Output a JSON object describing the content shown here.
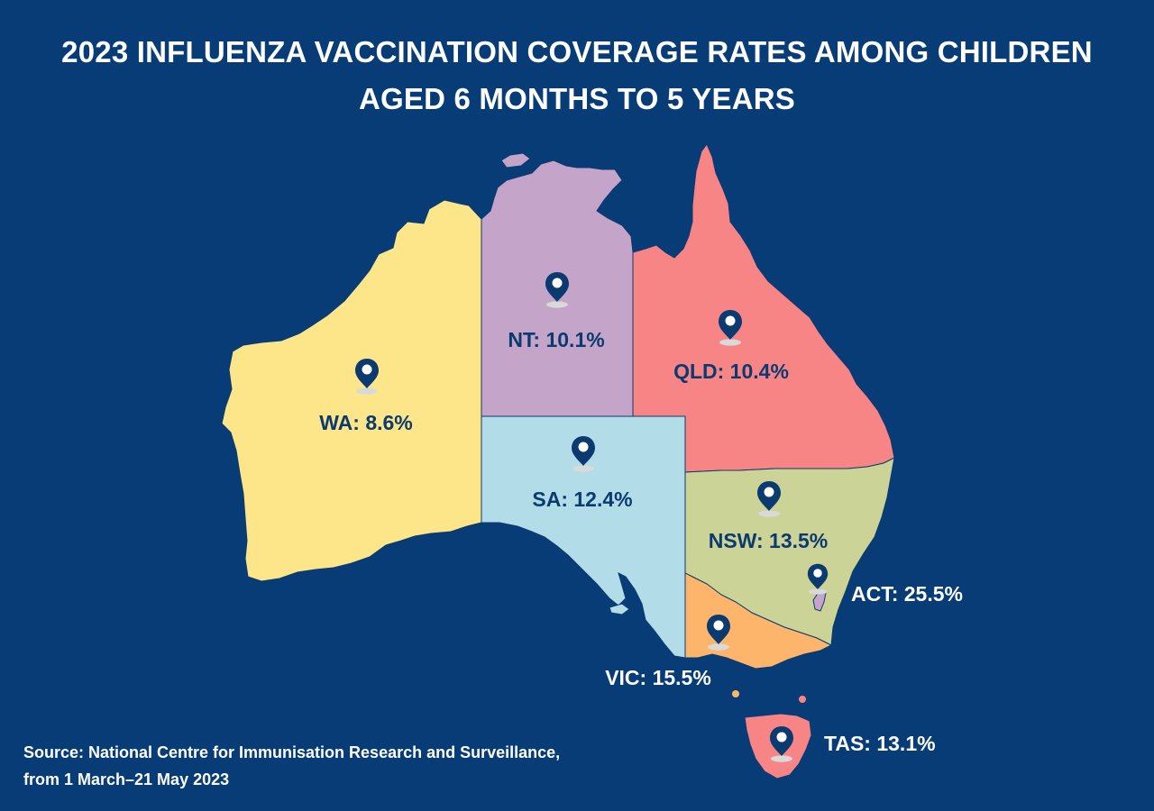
{
  "title": {
    "line1": "2023 INFLUENZA VACCINATION COVERAGE RATES AMONG CHILDREN",
    "line2": "AGED 6 MONTHS TO 5 YEARS"
  },
  "regions": {
    "wa": {
      "label": "WA: 8.6%",
      "color": "#fde68a"
    },
    "nt": {
      "label": "NT: 10.1%",
      "color": "#c4a5c9"
    },
    "qld": {
      "label": "QLD: 10.4%",
      "color": "#f88585"
    },
    "sa": {
      "label": "SA: 12.4%",
      "color": "#b3dce9"
    },
    "nsw": {
      "label": "NSW: 13.5%",
      "color": "#cbd396"
    },
    "act": {
      "label": "ACT: 25.5%",
      "color": "#c4a5c9"
    },
    "vic": {
      "label": "VIC: 15.5%",
      "color": "#fdb56c"
    },
    "tas": {
      "label": "TAS: 13.1%",
      "color": "#f88585"
    }
  },
  "colors": {
    "background": "#073c76",
    "marker": "#0b3a70",
    "border": "#0b3a70"
  },
  "source": {
    "line1": "Source: National Centre for Immunisation Research and Surveillance,",
    "line2": "from 1 March–21 May 2023"
  }
}
